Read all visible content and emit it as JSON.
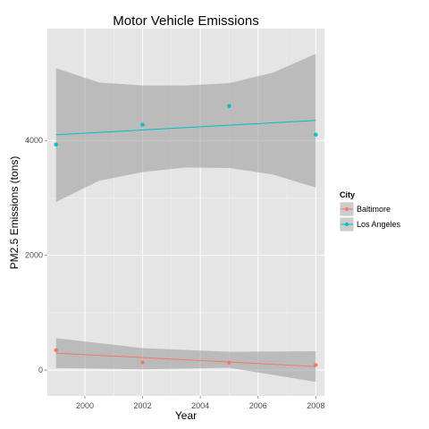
{
  "chart_data": {
    "type": "scatter",
    "title": "Motor Vehicle Emissions",
    "xlabel": "Year",
    "ylabel": "PM2.5 Emissions (tons)",
    "xlim": [
      1998.7,
      2008.3
    ],
    "ylim": [
      -450,
      5950
    ],
    "x_ticks": [
      2000,
      2002,
      2004,
      2006,
      2008
    ],
    "y_ticks": [
      0,
      2000,
      4000
    ],
    "grid": true,
    "legend": {
      "title": "City",
      "position": "right",
      "entries": [
        "Baltimore",
        "Los Angeles"
      ]
    },
    "series": [
      {
        "name": "Baltimore",
        "color": "#F8766D",
        "x": [
          1999,
          2002,
          2005,
          2008
        ],
        "y": [
          347,
          134,
          130,
          88
        ],
        "trend": {
          "x": [
            1999,
            2008
          ],
          "y": [
            296,
            62
          ]
        },
        "band": {
          "x": [
            1999,
            2002,
            2005,
            2008
          ],
          "upper": [
            556,
            384,
            319,
            328
          ],
          "lower": [
            36,
            14,
            41,
            -204
          ]
        }
      },
      {
        "name": "Los Angeles",
        "color": "#00BFC4",
        "x": [
          1999,
          2002,
          2005,
          2008
        ],
        "y": [
          3931,
          4274,
          4601,
          4101
        ],
        "trend": {
          "x": [
            1999,
            2008
          ],
          "y": [
            4100,
            4350
          ]
        },
        "band": {
          "x": [
            1999,
            2000.5,
            2002,
            2003.5,
            2005,
            2006.5,
            2008
          ],
          "upper": [
            5260,
            5010,
            4960,
            4960,
            5000,
            5180,
            5510
          ],
          "lower": [
            2930,
            3300,
            3450,
            3530,
            3520,
            3410,
            3180
          ]
        }
      }
    ]
  }
}
